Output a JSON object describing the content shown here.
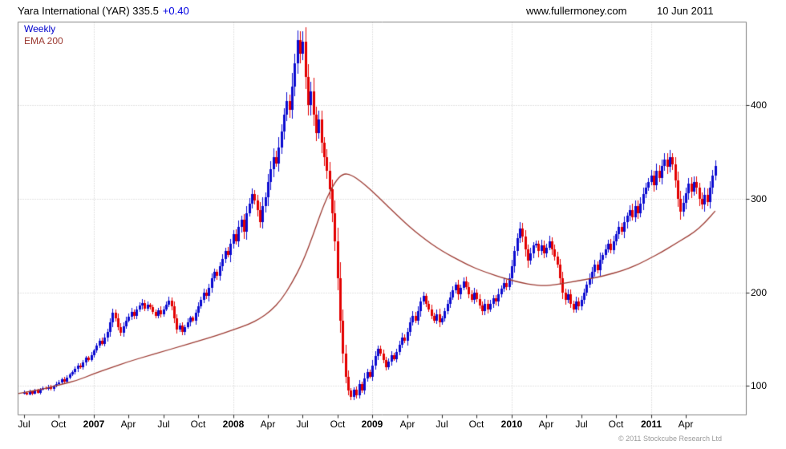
{
  "header": {
    "title": "Yara International (YAR) 335.5",
    "change": "+0.40",
    "site": "www.fullermoney.com",
    "date": "10 Jun 2011"
  },
  "legend": {
    "weekly": "Weekly",
    "ema": "EMA 200"
  },
  "footer": {
    "copyright": "© 2011 Stockcube Research Ltd"
  },
  "colors": {
    "up_candle": "#0b0bd0",
    "down_candle": "#e30000",
    "ema_line": "#9c3a32",
    "grid": "#c4c4c4",
    "frame": "#808080",
    "tick": "#222222",
    "legend_weekly": "#0000cc",
    "legend_ema": "#9c3a32",
    "change_text": "#0000e0"
  },
  "chart_data": {
    "type": "candlestick",
    "title": "Yara International (YAR) Weekly candlestick chart with EMA 200 overlay",
    "instrument": "Yara International",
    "ticker": "YAR",
    "interval": "Weekly",
    "overlay": "EMA 200",
    "last_price": 335.5,
    "change": 0.4,
    "date_range": [
      "2006-07",
      "2011-06"
    ],
    "y_axis_side": "right",
    "grid": "dotted",
    "ylim": [
      69,
      489
    ],
    "yticks": [
      100,
      200,
      300,
      400
    ],
    "x_labels": [
      {
        "label": "Jul",
        "week": 0
      },
      {
        "label": "Oct",
        "week": 13
      },
      {
        "label": "2007",
        "week": 26,
        "bold": true
      },
      {
        "label": "Apr",
        "week": 39
      },
      {
        "label": "Jul",
        "week": 52
      },
      {
        "label": "Oct",
        "week": 65
      },
      {
        "label": "2008",
        "week": 78,
        "bold": true
      },
      {
        "label": "Apr",
        "week": 91
      },
      {
        "label": "Jul",
        "week": 104
      },
      {
        "label": "Oct",
        "week": 117
      },
      {
        "label": "2009",
        "week": 130,
        "bold": true
      },
      {
        "label": "Apr",
        "week": 143
      },
      {
        "label": "Jul",
        "week": 156
      },
      {
        "label": "Oct",
        "week": 169
      },
      {
        "label": "2010",
        "week": 182,
        "bold": true
      },
      {
        "label": "Apr",
        "week": 195
      },
      {
        "label": "Jul",
        "week": 208
      },
      {
        "label": "Oct",
        "week": 221
      },
      {
        "label": "2011",
        "week": 234,
        "bold": true
      },
      {
        "label": "Apr",
        "week": 247
      }
    ],
    "x_grid_weeks": [
      26,
      78,
      130,
      182,
      234
    ],
    "first_open": 92,
    "weekly_closes": [
      93,
      91,
      94,
      92,
      95,
      93,
      96,
      98,
      97,
      99,
      97,
      100,
      102,
      104,
      107,
      105,
      109,
      112,
      115,
      118,
      122,
      120,
      125,
      130,
      128,
      133,
      138,
      143,
      148,
      145,
      152,
      158,
      168,
      178,
      172,
      163,
      157,
      164,
      170,
      174,
      179,
      175,
      182,
      186,
      189,
      183,
      187,
      184,
      179,
      175,
      181,
      177,
      182,
      187,
      191,
      185,
      172,
      160,
      165,
      158,
      163,
      168,
      173,
      170,
      178,
      185,
      192,
      200,
      196,
      205,
      215,
      222,
      218,
      228,
      236,
      244,
      240,
      252,
      262,
      255,
      270,
      278,
      265,
      285,
      295,
      305,
      298,
      288,
      275,
      292,
      302,
      318,
      332,
      345,
      338,
      355,
      372,
      390,
      405,
      395,
      420,
      445,
      470,
      455,
      468,
      430,
      400,
      415,
      390,
      370,
      385,
      360,
      345,
      330,
      310,
      285,
      255,
      215,
      170,
      135,
      110,
      95,
      88,
      96,
      90,
      102,
      95,
      108,
      115,
      110,
      122,
      132,
      140,
      135,
      128,
      120,
      126,
      133,
      129,
      136,
      144,
      152,
      148,
      158,
      168,
      175,
      170,
      180,
      190,
      196,
      188,
      182,
      175,
      170,
      177,
      168,
      172,
      180,
      188,
      195,
      202,
      208,
      198,
      205,
      212,
      206,
      198,
      192,
      200,
      193,
      186,
      180,
      188,
      182,
      188,
      194,
      190,
      198,
      204,
      210,
      206,
      215,
      228,
      244,
      258,
      268,
      260,
      246,
      234,
      242,
      250,
      252,
      244,
      250,
      242,
      248,
      255,
      246,
      238,
      230,
      215,
      200,
      192,
      198,
      188,
      182,
      190,
      185,
      192,
      200,
      208,
      215,
      222,
      230,
      224,
      235,
      240,
      246,
      252,
      245,
      255,
      262,
      270,
      265,
      275,
      282,
      288,
      280,
      292,
      285,
      295,
      305,
      312,
      318,
      325,
      315,
      330,
      322,
      335,
      342,
      334,
      345,
      337,
      320,
      300,
      286,
      296,
      306,
      316,
      308,
      318,
      312,
      300,
      294,
      304,
      297,
      312,
      325,
      335.5
    ],
    "ema200_points": [
      [
        0,
        93
      ],
      [
        6,
        96
      ],
      [
        13,
        101
      ],
      [
        20,
        106
      ],
      [
        26,
        113
      ],
      [
        32,
        119
      ],
      [
        39,
        126
      ],
      [
        46,
        132
      ],
      [
        52,
        137
      ],
      [
        58,
        142
      ],
      [
        65,
        148
      ],
      [
        72,
        154
      ],
      [
        78,
        160
      ],
      [
        84,
        166
      ],
      [
        88,
        172
      ],
      [
        92,
        180
      ],
      [
        96,
        192
      ],
      [
        100,
        210
      ],
      [
        104,
        232
      ],
      [
        108,
        262
      ],
      [
        112,
        295
      ],
      [
        116,
        318
      ],
      [
        119,
        327
      ],
      [
        122,
        326
      ],
      [
        126,
        318
      ],
      [
        130,
        308
      ],
      [
        134,
        297
      ],
      [
        138,
        286
      ],
      [
        142,
        275
      ],
      [
        146,
        265
      ],
      [
        150,
        256
      ],
      [
        154,
        248
      ],
      [
        158,
        241
      ],
      [
        162,
        235
      ],
      [
        166,
        229
      ],
      [
        170,
        224
      ],
      [
        174,
        220
      ],
      [
        178,
        216
      ],
      [
        182,
        213
      ],
      [
        186,
        210
      ],
      [
        190,
        208
      ],
      [
        194,
        207
      ],
      [
        198,
        208
      ],
      [
        202,
        210
      ],
      [
        206,
        212
      ],
      [
        210,
        214
      ],
      [
        214,
        216
      ],
      [
        218,
        219
      ],
      [
        222,
        222
      ],
      [
        226,
        226
      ],
      [
        230,
        231
      ],
      [
        234,
        237
      ],
      [
        238,
        243
      ],
      [
        242,
        250
      ],
      [
        246,
        257
      ],
      [
        250,
        264
      ],
      [
        254,
        274
      ],
      [
        258,
        287
      ]
    ]
  }
}
